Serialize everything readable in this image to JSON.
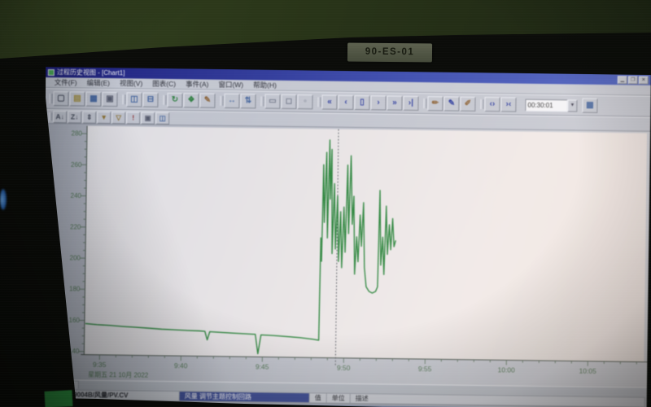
{
  "scene": {
    "bezel_label": "90-ES-01"
  },
  "window": {
    "title": "过程历史视图 - [Chart1]",
    "menu": [
      {
        "label": "文件(F)"
      },
      {
        "label": "编辑(E)"
      },
      {
        "label": "视图(V)"
      },
      {
        "label": "图表(C)"
      },
      {
        "label": "事件(A)"
      },
      {
        "label": "窗口(W)"
      },
      {
        "label": "帮助(H)"
      }
    ],
    "titlebar_buttons": [
      {
        "name": "minimize-button",
        "glyph": "▁"
      },
      {
        "name": "maximize-button",
        "glyph": "❐"
      },
      {
        "name": "close-button",
        "glyph": "✕"
      }
    ],
    "toolbar_main_groups": [
      {
        "items": [
          {
            "name": "new-icon",
            "glyph": "▢",
            "color": "#3b4252"
          },
          {
            "name": "open-icon",
            "glyph": "▤",
            "color": "#a08a2e"
          },
          {
            "name": "chart-icon",
            "glyph": "▦",
            "color": "#31599c"
          },
          {
            "name": "print-icon",
            "glyph": "▣",
            "color": "#4a5064"
          }
        ]
      },
      {
        "items": [
          {
            "name": "tile-horizontal-icon",
            "glyph": "◫",
            "color": "#31599c"
          },
          {
            "name": "tile-vertical-icon",
            "glyph": "⊟",
            "color": "#31599c"
          }
        ]
      },
      {
        "items": [
          {
            "name": "refresh-icon",
            "glyph": "↻",
            "color": "#1f7d33"
          },
          {
            "name": "snapshot-icon",
            "glyph": "❖",
            "color": "#1f7d33"
          },
          {
            "name": "edit-mode-icon",
            "glyph": "✎",
            "color": "#8a5a26"
          }
        ]
      },
      {
        "items": [
          {
            "name": "move-horizontal-icon",
            "glyph": "↔",
            "color": "#31599c"
          },
          {
            "name": "move-vertical-icon",
            "glyph": "⇅",
            "color": "#31599c"
          }
        ]
      },
      {
        "items": [
          {
            "name": "zoom-box-icon",
            "glyph": "▭",
            "color": "#6b7386"
          },
          {
            "name": "zoom-x-icon",
            "glyph": "◻",
            "color": "#6b7386"
          },
          {
            "name": "zoom-y-icon",
            "glyph": "▫",
            "color": "#6b7386"
          }
        ]
      },
      {
        "items": [
          {
            "name": "scroll-far-left-icon",
            "glyph": "«",
            "color": "#1d2fa0"
          },
          {
            "name": "scroll-left-icon",
            "glyph": "‹",
            "color": "#1d2fa0"
          },
          {
            "name": "center-cursor-icon",
            "glyph": "▯",
            "color": "#1d2fa0"
          },
          {
            "name": "scroll-right-icon",
            "glyph": "›",
            "color": "#1d2fa0"
          },
          {
            "name": "scroll-far-right-icon",
            "glyph": "»",
            "color": "#1d2fa0"
          },
          {
            "name": "scroll-to-end-icon",
            "glyph": "›|",
            "color": "#1d2fa0"
          }
        ]
      },
      {
        "items": [
          {
            "name": "annotate-icon",
            "glyph": "✏",
            "color": "#8a5a26"
          },
          {
            "name": "add-pen-icon",
            "glyph": "✎",
            "color": "#1d2fa0"
          },
          {
            "name": "remove-pen-icon",
            "glyph": "✐",
            "color": "#8a5a26"
          }
        ]
      },
      {
        "items": [
          {
            "name": "expand-timescale-icon",
            "glyph": "‹›",
            "color": "#1d2fa0"
          },
          {
            "name": "compress-timescale-icon",
            "glyph": "›‹",
            "color": "#1d2fa0"
          }
        ]
      }
    ],
    "time_span": "00:30:01",
    "toolbar_after_combo": [
      {
        "name": "save-view-icon",
        "glyph": "▩",
        "color": "#31599c"
      }
    ],
    "toolbar_secondary": [
      {
        "name": "scale-x-icon",
        "glyph": "A↓",
        "color": "#3b4252"
      },
      {
        "name": "scale-z-icon",
        "glyph": "Z↓",
        "color": "#3b4252"
      },
      {
        "name": "autoscale-y-icon",
        "glyph": "⇕",
        "color": "#3b4252"
      },
      {
        "name": "filter-icon",
        "glyph": "▼",
        "color": "#8a6a1e"
      },
      {
        "name": "filter-clear-icon",
        "glyph": "▽",
        "color": "#8a6a1e"
      },
      {
        "name": "event-alarm-icon",
        "glyph": "!",
        "color": "#8c1d1d"
      },
      {
        "name": "print-chart-icon",
        "glyph": "▣",
        "color": "#4a5064"
      },
      {
        "name": "legend-panel-icon",
        "glyph": "◫",
        "color": "#31599c"
      }
    ]
  },
  "chart_data": {
    "type": "line",
    "title": "",
    "xlabel": "",
    "ylabel": "",
    "x_unit": "time of day (minutes after 9:00)",
    "xlim": [
      34.05,
      68.45
    ],
    "ylim": [
      138,
      285
    ],
    "grid": false,
    "legend_position": "bottom",
    "x_ticks": [
      {
        "t": 35,
        "label": "9:35"
      },
      {
        "t": 40,
        "label": "9:40"
      },
      {
        "t": 45,
        "label": "9:45"
      },
      {
        "t": 50,
        "label": "9:50"
      },
      {
        "t": 55,
        "label": "9:55"
      },
      {
        "t": 60,
        "label": "10:00"
      },
      {
        "t": 65,
        "label": "10:05"
      }
    ],
    "x_minor_step": 1,
    "y_ticks": [
      140,
      160,
      180,
      200,
      220,
      240,
      260,
      280
    ],
    "y_minor_step": 5,
    "date_label": "星期五 21 10月 2022",
    "cursor_t": 49.5,
    "axis_color": "#46704a",
    "series": [
      {
        "name": "92CC9004B/风量/PV.CV",
        "color": "#17812b",
        "points": [
          [
            34.1,
            158
          ],
          [
            34.8,
            157.4
          ],
          [
            35.6,
            157
          ],
          [
            36.4,
            156.4
          ],
          [
            37.2,
            156
          ],
          [
            38,
            155.5
          ],
          [
            38.8,
            155
          ],
          [
            39.6,
            154.7
          ],
          [
            40.4,
            154.4
          ],
          [
            41.1,
            154.2
          ],
          [
            41.45,
            154
          ],
          [
            41.6,
            148.5
          ],
          [
            41.75,
            153.8
          ],
          [
            42.5,
            153.4
          ],
          [
            43.3,
            153
          ],
          [
            44.1,
            152.7
          ],
          [
            44.55,
            152.5
          ],
          [
            44.72,
            140
          ],
          [
            44.9,
            152.2
          ],
          [
            45.7,
            151.8
          ],
          [
            46.5,
            151.3
          ],
          [
            47.3,
            150.7
          ],
          [
            48.1,
            149.8
          ],
          [
            48.45,
            149.2
          ],
          [
            48.5,
            215
          ],
          [
            48.56,
            200
          ],
          [
            48.62,
            262
          ],
          [
            48.7,
            225
          ],
          [
            48.8,
            270
          ],
          [
            48.9,
            215
          ],
          [
            48.98,
            278
          ],
          [
            49.05,
            240
          ],
          [
            49.12,
            272
          ],
          [
            49.2,
            205
          ],
          [
            49.3,
            250
          ],
          [
            49.4,
            208
          ],
          [
            49.5,
            242
          ],
          [
            49.6,
            200
          ],
          [
            49.7,
            232
          ],
          [
            49.8,
            196
          ],
          [
            49.9,
            235
          ],
          [
            50.0,
            206
          ],
          [
            50.1,
            262
          ],
          [
            50.2,
            218
          ],
          [
            50.3,
            268
          ],
          [
            50.42,
            224
          ],
          [
            50.5,
            242
          ],
          [
            50.6,
            192
          ],
          [
            50.7,
            216
          ],
          [
            50.8,
            200
          ],
          [
            50.9,
            230
          ],
          [
            51.0,
            210
          ],
          [
            51.1,
            238
          ],
          [
            51.2,
            196
          ],
          [
            51.32,
            184
          ],
          [
            51.5,
            181
          ],
          [
            51.7,
            180
          ],
          [
            51.9,
            181
          ],
          [
            52.02,
            184
          ],
          [
            52.1,
            246
          ],
          [
            52.2,
            198
          ],
          [
            52.3,
            216
          ],
          [
            52.4,
            192
          ],
          [
            52.5,
            236
          ],
          [
            52.6,
            205
          ],
          [
            52.7,
            224
          ],
          [
            52.8,
            208
          ],
          [
            52.9,
            228
          ],
          [
            53.0,
            210
          ],
          [
            53.1,
            214
          ]
        ]
      }
    ]
  },
  "legend_panel": {
    "tab_label": "数据属性",
    "row": {
      "color": "#1e7e2c",
      "reference": "92CC9004B/风量/PV.CV",
      "cells": [
        {
          "text": "风量 调节主题控制回路",
          "selected": true
        },
        {
          "text": "值",
          "selected": false
        },
        {
          "text": "单位",
          "selected": false
        },
        {
          "text": "描述",
          "selected": false
        }
      ]
    }
  }
}
